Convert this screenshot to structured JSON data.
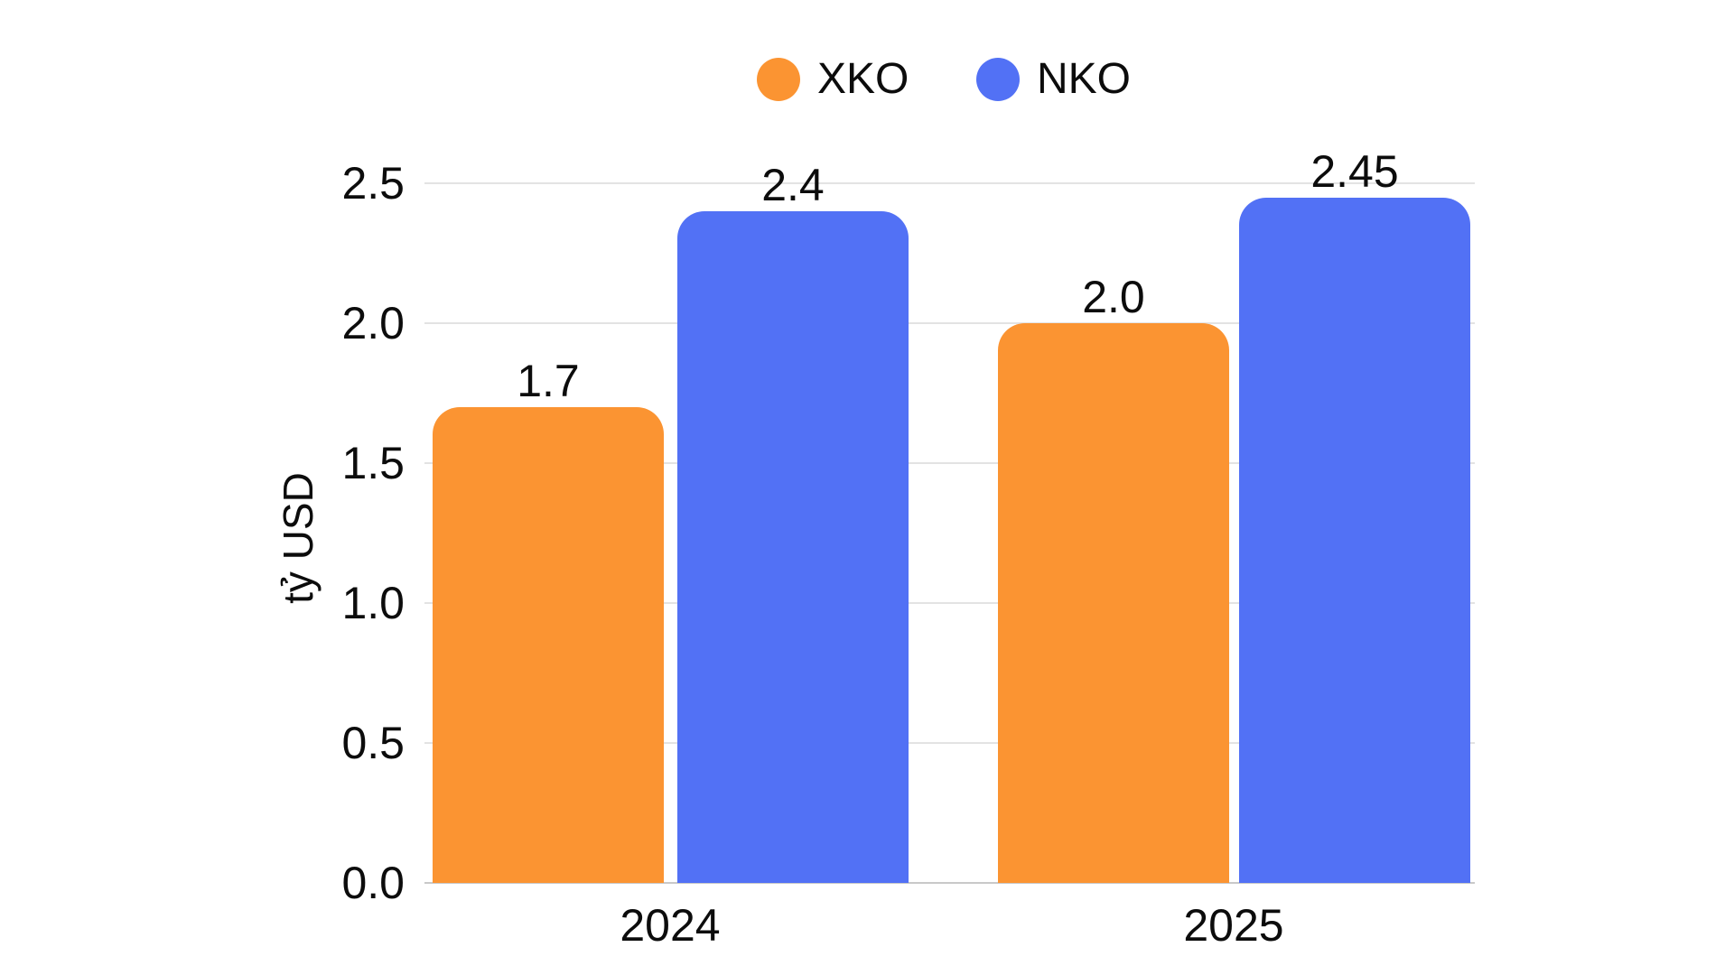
{
  "chart_data": {
    "type": "bar",
    "title": "",
    "ylabel": "tỷ USD",
    "xlabel": "",
    "categories": [
      "2024",
      "2025"
    ],
    "series": [
      {
        "name": "XKO",
        "color": "#FB9432",
        "values": [
          1.7,
          2.0
        ],
        "labels": [
          "1.7",
          "2.0"
        ]
      },
      {
        "name": "NKO",
        "color": "#5271F5",
        "values": [
          2.4,
          2.45
        ],
        "labels": [
          "2.4",
          "2.45"
        ]
      }
    ],
    "y_ticks": [
      "0.0",
      "0.5",
      "1.0",
      "1.5",
      "2.0",
      "2.5"
    ],
    "ylim": [
      0,
      2.5
    ],
    "grid": "horizontal",
    "legend_position": "top-center",
    "colors": {
      "background": "#FFFFFF",
      "grid_line": "#E3E3E3",
      "baseline": "#C9C9C9",
      "text": "#0C0C0C"
    }
  }
}
